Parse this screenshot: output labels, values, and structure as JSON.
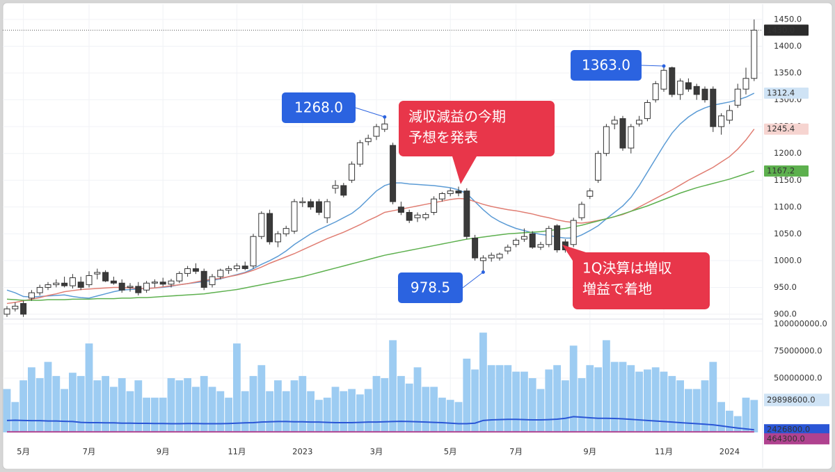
{
  "chart_data": {
    "type": "candlestick",
    "grid": true,
    "categories": [
      null,
      null,
      "5月",
      null,
      null,
      null,
      null,
      null,
      null,
      null,
      "7月",
      null,
      null,
      null,
      null,
      null,
      null,
      null,
      null,
      "9月",
      null,
      null,
      null,
      null,
      null,
      null,
      null,
      null,
      "11月",
      null,
      null,
      null,
      null,
      null,
      null,
      null,
      "2023",
      null,
      null,
      null,
      null,
      null,
      null,
      null,
      null,
      "3月",
      null,
      null,
      null,
      null,
      null,
      null,
      null,
      null,
      "5月",
      null,
      null,
      null,
      null,
      null,
      null,
      null,
      "7月",
      null,
      null,
      null,
      null,
      null,
      null,
      null,
      null,
      "9月",
      null,
      null,
      null,
      null,
      null,
      null,
      null,
      null,
      "11月",
      null,
      null,
      null,
      null,
      null,
      null,
      null,
      "2024",
      null,
      null,
      null
    ],
    "open": [
      900,
      910,
      920,
      930,
      940,
      950,
      955,
      958,
      953,
      960,
      955,
      975,
      978,
      962,
      958,
      950,
      952,
      945,
      958,
      960,
      956,
      962,
      976,
      985,
      980,
      955,
      970,
      982,
      985,
      990,
      990,
      1045,
      1088,
      1035,
      1050,
      1055,
      1108,
      1110,
      1110,
      1080,
      1135,
      1140,
      1150,
      1180,
      1222,
      1232,
      1245,
      1215,
      1100,
      1090,
      1080,
      1080,
      1090,
      1115,
      1125,
      1130,
      1130,
      1042,
      1000,
      1005,
      1005,
      1018,
      1030,
      1040,
      1050,
      1025,
      1030,
      1065,
      1035,
      1030,
      1080,
      1120,
      1150,
      1200,
      1255,
      1265,
      1210,
      1255,
      1265,
      1300,
      1320,
      1360,
      1310,
      1332,
      1325,
      1320,
      1320,
      1250,
      1262,
      1290,
      1320,
      1340
    ],
    "high": [
      915,
      922,
      925,
      945,
      955,
      960,
      965,
      970,
      975,
      970,
      980,
      985,
      982,
      970,
      965,
      958,
      960,
      962,
      965,
      968,
      966,
      980,
      990,
      995,
      985,
      975,
      985,
      990,
      995,
      998,
      1050,
      1092,
      1095,
      1055,
      1065,
      1115,
      1118,
      1115,
      1115,
      1115,
      1150,
      1145,
      1185,
      1225,
      1235,
      1255,
      1268,
      1220,
      1110,
      1095,
      1090,
      1090,
      1120,
      1128,
      1135,
      1138,
      1135,
      1048,
      1010,
      1015,
      1015,
      1030,
      1042,
      1060,
      1055,
      1035,
      1065,
      1068,
      1040,
      1080,
      1110,
      1135,
      1205,
      1255,
      1270,
      1270,
      1255,
      1270,
      1300,
      1335,
      1363,
      1362,
      1340,
      1340,
      1330,
      1325,
      1325,
      1275,
      1290,
      1330,
      1360,
      1450
    ],
    "low": [
      895,
      905,
      895,
      925,
      935,
      945,
      950,
      950,
      948,
      945,
      950,
      965,
      960,
      955,
      940,
      942,
      935,
      940,
      950,
      952,
      950,
      958,
      970,
      975,
      945,
      950,
      965,
      975,
      980,
      982,
      985,
      1040,
      1030,
      1025,
      1045,
      1050,
      1100,
      1095,
      1085,
      1070,
      1125,
      1118,
      1145,
      1175,
      1215,
      1225,
      1240,
      1105,
      1085,
      1070,
      1072,
      1075,
      1085,
      1110,
      1120,
      1120,
      1040,
      1000,
      978.5,
      998,
      1000,
      1012,
      1025,
      1035,
      1022,
      1020,
      1025,
      1015,
      1015,
      1025,
      1075,
      1115,
      1145,
      1195,
      1245,
      1205,
      1200,
      1250,
      1260,
      1295,
      1315,
      1305,
      1300,
      1315,
      1300,
      1295,
      1240,
      1235,
      1255,
      1285,
      1310,
      1335
    ],
    "close": [
      910,
      915,
      900,
      940,
      950,
      955,
      958,
      953,
      968,
      950,
      972,
      978,
      962,
      958,
      945,
      952,
      940,
      958,
      960,
      956,
      962,
      976,
      985,
      980,
      950,
      970,
      982,
      985,
      990,
      985,
      1045,
      1088,
      1035,
      1050,
      1060,
      1110,
      1110,
      1100,
      1090,
      1110,
      1140,
      1122,
      1180,
      1220,
      1228,
      1250,
      1255,
      1110,
      1090,
      1075,
      1085,
      1086,
      1115,
      1125,
      1130,
      1126,
      1045,
      1005,
      1005,
      1010,
      1012,
      1025,
      1038,
      1045,
      1025,
      1030,
      1060,
      1020,
      1020,
      1075,
      1105,
      1130,
      1200,
      1250,
      1262,
      1210,
      1250,
      1262,
      1295,
      1330,
      1355,
      1310,
      1335,
      1320,
      1310,
      1300,
      1250,
      1270,
      1280,
      1320,
      1340,
      1430
    ],
    "up_color": "#ffffff",
    "down_color": "#3a3a3a",
    "wick_color": "#333333",
    "ylim": [
      892.2,
      1475.9
    ],
    "yticks": [
      {
        "value": 900,
        "label": "900.0"
      },
      {
        "value": 950,
        "label": "950.0"
      },
      {
        "value": 1000,
        "label": "1000.0"
      },
      {
        "value": 1050,
        "label": "1050.0"
      },
      {
        "value": 1100,
        "label": "1100.0"
      },
      {
        "value": 1150,
        "label": "1150.0"
      },
      {
        "value": 1200,
        "label": "1200.0"
      },
      {
        "value": 1250,
        "label": "1250.0"
      },
      {
        "value": 1300,
        "label": "1300.0"
      },
      {
        "value": 1350,
        "label": "1350.0"
      },
      {
        "value": 1400,
        "label": "1400.0"
      },
      {
        "value": 1450,
        "label": "1450.0"
      }
    ],
    "last_label": "1430.0",
    "moving_averages": [
      {
        "color": "#5b9bd5",
        "badge_color": "#cfe3f5",
        "last_label": "1312.4",
        "values": [
          945,
          940,
          933,
          932,
          933,
          934,
          935,
          936,
          933,
          931,
          930,
          934,
          938,
          942,
          945,
          946,
          947,
          948,
          949,
          950,
          952,
          955,
          957,
          959,
          961,
          963,
          966,
          970,
          974,
          978,
          985,
          993,
          1000,
          1008,
          1018,
          1030,
          1040,
          1050,
          1058,
          1065,
          1072,
          1080,
          1088,
          1100,
          1115,
          1130,
          1140,
          1145,
          1145,
          1143,
          1142,
          1141,
          1140,
          1138,
          1136,
          1132,
          1125,
          1110,
          1095,
          1082,
          1073,
          1066,
          1060,
          1056,
          1052,
          1049,
          1047,
          1044,
          1042,
          1042,
          1048,
          1056,
          1065,
          1078,
          1090,
          1102,
          1118,
          1140,
          1165,
          1190,
          1215,
          1238,
          1255,
          1268,
          1278,
          1285,
          1290,
          1293,
          1296,
          1300,
          1305,
          1312.4
        ]
      },
      {
        "color": "#e07d72",
        "badge_color": "#f6d4d0",
        "last_label": "1245.4",
        "values": [
          920,
          922,
          925,
          928,
          931,
          935,
          938,
          942,
          944,
          946,
          947,
          948,
          949,
          950,
          950,
          949,
          948,
          948,
          949,
          951,
          953,
          955,
          957,
          960,
          963,
          965,
          967,
          970,
          973,
          977,
          982,
          988,
          995,
          1001,
          1007,
          1013,
          1020,
          1027,
          1034,
          1041,
          1047,
          1053,
          1060,
          1067,
          1075,
          1082,
          1090,
          1093,
          1096,
          1099,
          1102,
          1105,
          1108,
          1111,
          1114,
          1116,
          1115,
          1110,
          1105,
          1101,
          1098,
          1095,
          1093,
          1090,
          1087,
          1083,
          1080,
          1076,
          1073,
          1071,
          1070,
          1072,
          1075,
          1078,
          1082,
          1086,
          1092,
          1100,
          1108,
          1116,
          1124,
          1132,
          1141,
          1150,
          1158,
          1166,
          1174,
          1184,
          1194,
          1208,
          1225,
          1245.4
        ]
      },
      {
        "color": "#5db04e",
        "badge_color": "#5db04e",
        "last_label": "1167.2",
        "values": [
          928,
          927,
          926,
          926,
          926,
          927,
          927,
          927,
          928,
          928,
          928,
          929,
          929,
          929,
          930,
          930,
          931,
          931,
          932,
          933,
          934,
          935,
          936,
          937,
          938,
          940,
          942,
          944,
          946,
          949,
          952,
          955,
          958,
          961,
          964,
          967,
          970,
          974,
          978,
          982,
          986,
          990,
          994,
          998,
          1002,
          1006,
          1010,
          1013,
          1016,
          1019,
          1022,
          1025,
          1028,
          1031,
          1034,
          1037,
          1040,
          1042,
          1044,
          1046,
          1048,
          1050,
          1051,
          1052,
          1053,
          1054,
          1056,
          1058,
          1060,
          1063,
          1066,
          1070,
          1074,
          1078,
          1082,
          1087,
          1092,
          1097,
          1102,
          1108,
          1114,
          1120,
          1126,
          1131,
          1136,
          1140,
          1144,
          1148,
          1152,
          1157,
          1162,
          1167.2
        ]
      }
    ],
    "volume": {
      "color": "#9dccf2",
      "ylim": [
        0,
        103850000
      ],
      "yticks": [
        {
          "value": 50000000,
          "label": "50000000.0"
        },
        {
          "value": 75000000,
          "label": "75000000.0"
        },
        {
          "value": 100000000,
          "label": "100000000.0"
        }
      ],
      "last_label": "29898600.0",
      "values": [
        40000000,
        28000000,
        48000000,
        60000000,
        50000000,
        65000000,
        52000000,
        40000000,
        55000000,
        52000000,
        82000000,
        48000000,
        52000000,
        42000000,
        50000000,
        38000000,
        48000000,
        32000000,
        32000000,
        32000000,
        50000000,
        48000000,
        50000000,
        42000000,
        52000000,
        42000000,
        38000000,
        32000000,
        82000000,
        38000000,
        52000000,
        62000000,
        38000000,
        48000000,
        38000000,
        48000000,
        52000000,
        38000000,
        30000000,
        32000000,
        42000000,
        38000000,
        40000000,
        35000000,
        40000000,
        52000000,
        50000000,
        85000000,
        52000000,
        45000000,
        60000000,
        42000000,
        42000000,
        32000000,
        30000000,
        28000000,
        68000000,
        58000000,
        92000000,
        62000000,
        62000000,
        62000000,
        56000000,
        56000000,
        50000000,
        40000000,
        58000000,
        62000000,
        48000000,
        80000000,
        50000000,
        62000000,
        60000000,
        85000000,
        65000000,
        65000000,
        62000000,
        56000000,
        58000000,
        60000000,
        56000000,
        52000000,
        48000000,
        40000000,
        40000000,
        48000000,
        65000000,
        28000000,
        20000000,
        15000000,
        32000000,
        29898600
      ],
      "moving_averages": [
        {
          "color": "#2a56d6",
          "last_label": "2426800.0",
          "values": [
            11000000,
            11200000,
            11000000,
            10800000,
            10800000,
            10500000,
            10500000,
            10200000,
            10000000,
            9200000,
            9000000,
            9000000,
            8800000,
            8800000,
            8500000,
            8500000,
            8300000,
            8300000,
            8200000,
            8200000,
            8000000,
            8000000,
            8200000,
            8200000,
            8000000,
            8000000,
            8000000,
            8200000,
            8500000,
            8800000,
            9000000,
            9500000,
            9800000,
            10000000,
            10000000,
            9800000,
            9800000,
            9500000,
            9500000,
            9200000,
            9000000,
            9000000,
            9000000,
            9200000,
            9500000,
            9500000,
            9800000,
            10000000,
            10200000,
            10000000,
            9800000,
            9500000,
            9200000,
            9000000,
            8500000,
            8000000,
            8000000,
            8500000,
            11000000,
            11500000,
            11800000,
            12000000,
            12000000,
            11800000,
            11500000,
            11500000,
            11800000,
            12200000,
            13000000,
            14500000,
            14000000,
            13500000,
            13000000,
            13000000,
            12800000,
            12500000,
            12000000,
            11500000,
            11000000,
            10500000,
            10000000,
            9500000,
            9000000,
            8500000,
            8000000,
            7500000,
            7000000,
            6000000,
            5000000,
            4000000,
            3200000,
            2426800
          ]
        },
        {
          "color": "#b0428f",
          "last_label": "464300.0",
          "values": [
            500000,
            510000,
            505000,
            500000,
            498000,
            495000,
            500000,
            505000,
            510000,
            508000,
            505000,
            500000,
            498000,
            495000,
            492000,
            490000,
            492000,
            495000,
            498000,
            500000,
            502000,
            505000,
            508000,
            510000,
            512000,
            510000,
            508000,
            505000,
            502000,
            500000,
            498000,
            495000,
            492000,
            490000,
            488000,
            485000,
            488000,
            490000,
            492000,
            495000,
            498000,
            500000,
            502000,
            505000,
            508000,
            510000,
            512000,
            515000,
            512000,
            510000,
            508000,
            505000,
            502000,
            500000,
            498000,
            495000,
            492000,
            490000,
            488000,
            485000,
            482000,
            480000,
            482000,
            485000,
            488000,
            490000,
            492000,
            495000,
            498000,
            500000,
            498000,
            495000,
            492000,
            490000,
            488000,
            485000,
            482000,
            480000,
            478000,
            476000,
            474000,
            472000,
            470000,
            469000,
            468000,
            467000,
            466000,
            466000,
            465000,
            465000,
            464500,
            464300
          ]
        }
      ]
    },
    "annotations": [
      {
        "value": 1268,
        "label": "1268.0"
      },
      {
        "value": 978.5,
        "label": "978.5"
      },
      {
        "value": 1363,
        "label": "1363.0"
      }
    ],
    "callouts": [
      {
        "lines": [
          "減収減益の今期",
          "予想を発表"
        ]
      },
      {
        "lines": [
          "1Q決算は増収",
          "増益で着地"
        ]
      }
    ]
  }
}
